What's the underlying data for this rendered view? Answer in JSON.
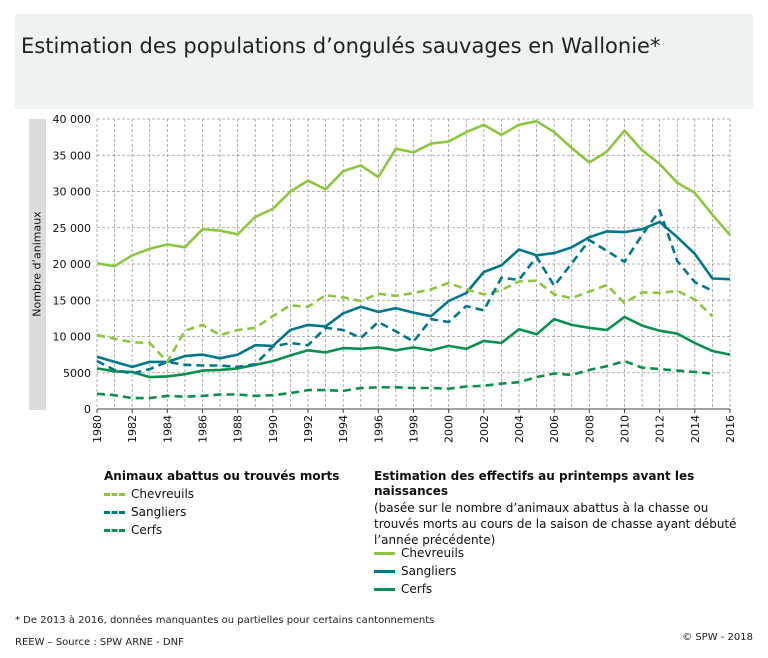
{
  "title": "Estimation des populations d’ongulés sauvages en Wallonie*",
  "legend_groups": [
    {
      "heading": "Animaux abattus ou trouvés morts",
      "subtext": "",
      "items": [
        "Chevreuils",
        "Sangliers",
        "Cerfs"
      ]
    },
    {
      "heading": "Estimation des effectifs au printemps avant les naissances",
      "subtext": "(basée sur le nombre d’animaux abattus à la chasse ou trouvés morts au cours de la saison de chasse ayant débuté l’année précédente)",
      "items": [
        "Chevreuils",
        "Sangliers",
        "Cerfs"
      ]
    }
  ],
  "footnote": "* De 2013 à 2016, données manquantes ou partielles pour certains cantonnements",
  "source": "REEW – Source : SPW ARNE - DNF",
  "copyright": "© SPW - 2018",
  "colors": {
    "chevreuils": "#8dc63f",
    "sangliers": "#00778b",
    "cerfs": "#0a8f4f"
  },
  "chart_data": {
    "type": "line",
    "ylabel": "Nombre d’animaux",
    "xlabel": "",
    "xlim": [
      1980,
      2016
    ],
    "ylim": [
      0,
      40000
    ],
    "yticks": [
      "0",
      "5000",
      "10 000",
      "15 000",
      "20 000",
      "25 000",
      "30 000",
      "35 000",
      "40 000"
    ],
    "xticks": [
      "1980",
      "1982",
      "1984",
      "1986",
      "1988",
      "1990",
      "1992",
      "1994",
      "1996",
      "1998",
      "2000",
      "2002",
      "2004",
      "2006",
      "2008",
      "2010",
      "2012",
      "2014",
      "2016"
    ],
    "grid": true,
    "series": [
      {
        "name": "Chevreuils",
        "group": "Estimation des effectifs au printemps avant les naissances",
        "style": "solid",
        "color": "#8dc63f",
        "x": [
          1980,
          1981,
          1982,
          1983,
          1984,
          1985,
          1986,
          1987,
          1988,
          1989,
          1990,
          1991,
          1992,
          1993,
          1994,
          1995,
          1996,
          1997,
          1998,
          1999,
          2000,
          2001,
          2002,
          2003,
          2004,
          2005,
          2006,
          2007,
          2008,
          2009,
          2010,
          2011,
          2012,
          2013,
          2014,
          2015,
          2016
        ],
        "values": [
          20100,
          19700,
          21200,
          22100,
          22700,
          22300,
          24800,
          24600,
          24100,
          26500,
          27600,
          30000,
          31500,
          30300,
          32800,
          33600,
          32000,
          35900,
          35400,
          36600,
          36900,
          38200,
          39200,
          37800,
          39200,
          39700,
          38200,
          36000,
          34000,
          35500,
          38400,
          35700,
          33800,
          31200,
          29800,
          26800,
          24000
        ]
      },
      {
        "name": "Sangliers",
        "group": "Estimation des effectifs au printemps avant les naissances",
        "style": "solid",
        "color": "#00778b",
        "x": [
          1980,
          1981,
          1982,
          1983,
          1984,
          1985,
          1986,
          1987,
          1988,
          1989,
          1990,
          1991,
          1992,
          1993,
          1994,
          1995,
          1996,
          1997,
          1998,
          1999,
          2000,
          2001,
          2002,
          2003,
          2004,
          2005,
          2006,
          2007,
          2008,
          2009,
          2010,
          2011,
          2012,
          2013,
          2014,
          2015,
          2016
        ],
        "values": [
          7200,
          6500,
          5800,
          6500,
          6500,
          7300,
          7500,
          7000,
          7500,
          8800,
          8700,
          10900,
          11600,
          11400,
          13200,
          14100,
          13400,
          13900,
          13300,
          12800,
          14900,
          16000,
          18900,
          19800,
          22000,
          21200,
          21500,
          22300,
          23700,
          24500,
          24400,
          24800,
          25800,
          23700,
          21400,
          18000,
          17900
        ]
      },
      {
        "name": "Cerfs",
        "group": "Estimation des effectifs au printemps avant les naissances",
        "style": "solid",
        "color": "#0a8f4f",
        "x": [
          1980,
          1981,
          1982,
          1983,
          1984,
          1985,
          1986,
          1987,
          1988,
          1989,
          1990,
          1991,
          1992,
          1993,
          1994,
          1995,
          1996,
          1997,
          1998,
          1999,
          2000,
          2001,
          2002,
          2003,
          2004,
          2005,
          2006,
          2007,
          2008,
          2009,
          2010,
          2011,
          2012,
          2013,
          2014,
          2015,
          2016
        ],
        "values": [
          5600,
          5200,
          5100,
          4400,
          4500,
          4800,
          5300,
          5400,
          5600,
          6100,
          6600,
          7400,
          8100,
          7800,
          8400,
          8300,
          8500,
          8100,
          8500,
          8100,
          8700,
          8300,
          9400,
          9100,
          11000,
          10300,
          12400,
          11600,
          11200,
          10900,
          12700,
          11500,
          10800,
          10400,
          9100,
          8000,
          7500
        ]
      },
      {
        "name": "Chevreuils",
        "group": "Animaux abattus ou trouvés morts",
        "style": "dashed",
        "color": "#8dc63f",
        "x": [
          1980,
          1981,
          1982,
          1983,
          1984,
          1985,
          1986,
          1987,
          1988,
          1989,
          1990,
          1991,
          1992,
          1993,
          1994,
          1995,
          1996,
          1997,
          1998,
          1999,
          2000,
          2001,
          2002,
          2003,
          2004,
          2005,
          2006,
          2007,
          2008,
          2009,
          2010,
          2011,
          2012,
          2013,
          2014,
          2015
        ],
        "values": [
          10200,
          9700,
          9200,
          9100,
          6500,
          10800,
          11600,
          10200,
          10900,
          11200,
          12800,
          14300,
          14100,
          15700,
          15400,
          14900,
          15900,
          15600,
          16000,
          16500,
          17400,
          16500,
          15800,
          16400,
          17600,
          17700,
          15800,
          15300,
          16200,
          17100,
          14600,
          16100,
          16000,
          16300,
          15100,
          12800
        ]
      },
      {
        "name": "Sangliers",
        "group": "Animaux abattus ou trouvés morts",
        "style": "dashed",
        "color": "#00778b",
        "x": [
          1980,
          1981,
          1982,
          1983,
          1984,
          1985,
          1986,
          1987,
          1988,
          1989,
          1990,
          1991,
          1992,
          1993,
          1994,
          1995,
          1996,
          1997,
          1998,
          1999,
          2000,
          2001,
          2002,
          2003,
          2004,
          2005,
          2006,
          2007,
          2008,
          2009,
          2010,
          2011,
          2012,
          2013,
          2014,
          2015
        ],
        "values": [
          6600,
          5400,
          4900,
          5500,
          6500,
          6100,
          6000,
          6000,
          5800,
          6200,
          8600,
          9100,
          8800,
          11200,
          10900,
          9800,
          12000,
          10700,
          9300,
          12400,
          12000,
          14200,
          13600,
          18100,
          17800,
          21000,
          17000,
          20100,
          23300,
          21800,
          20300,
          24000,
          27400,
          20400,
          17500,
          16300
        ]
      },
      {
        "name": "Cerfs",
        "group": "Animaux abattus ou trouvés morts",
        "style": "dashed",
        "color": "#0a8f4f",
        "x": [
          1980,
          1981,
          1982,
          1983,
          1984,
          1985,
          1986,
          1987,
          1988,
          1989,
          1990,
          1991,
          1992,
          1993,
          1994,
          1995,
          1996,
          1997,
          1998,
          1999,
          2000,
          2001,
          2002,
          2003,
          2004,
          2005,
          2006,
          2007,
          2008,
          2009,
          2010,
          2011,
          2012,
          2013,
          2014,
          2015
        ],
        "values": [
          2100,
          1900,
          1500,
          1500,
          1800,
          1700,
          1800,
          2000,
          2000,
          1800,
          1900,
          2200,
          2600,
          2600,
          2500,
          2900,
          3000,
          3000,
          2900,
          2900,
          2800,
          3100,
          3200,
          3500,
          3700,
          4400,
          4900,
          4700,
          5400,
          5900,
          6600,
          5700,
          5500,
          5300,
          5100,
          4900
        ]
      }
    ]
  }
}
